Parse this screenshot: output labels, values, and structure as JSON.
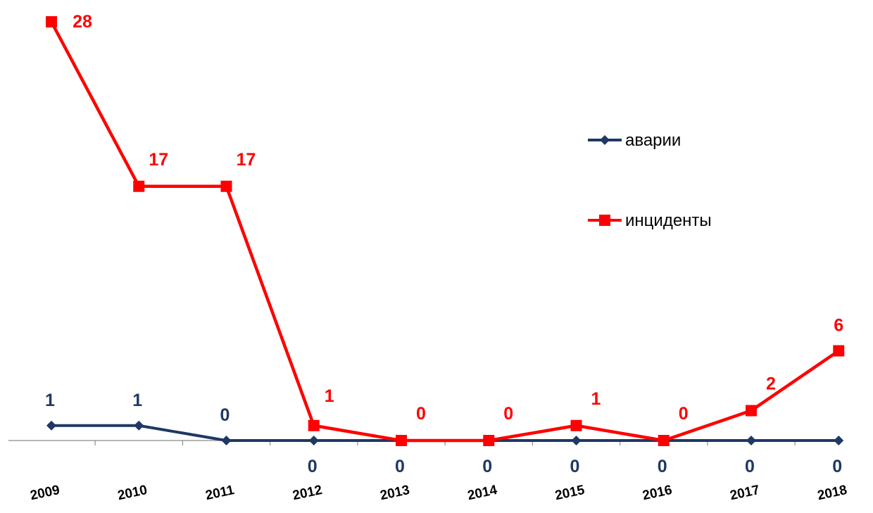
{
  "chart_data": {
    "type": "line",
    "title": "",
    "xlabel": "",
    "ylabel": "",
    "categories": [
      "2009",
      "2010",
      "2011",
      "2012",
      "2013",
      "2014",
      "2015",
      "2016",
      "2017",
      "2018"
    ],
    "ylim": [
      0,
      28
    ],
    "grid": false,
    "legend_position": "right",
    "series": [
      {
        "name": "аварии",
        "values": [
          1,
          1,
          0,
          0,
          0,
          0,
          0,
          0,
          0,
          0
        ],
        "color": "#1F3864",
        "marker": "diamond"
      },
      {
        "name": "инциденты",
        "values": [
          28,
          17,
          17,
          1,
          0,
          0,
          1,
          0,
          2,
          6
        ],
        "color": "#FF0000",
        "marker": "square"
      }
    ]
  }
}
